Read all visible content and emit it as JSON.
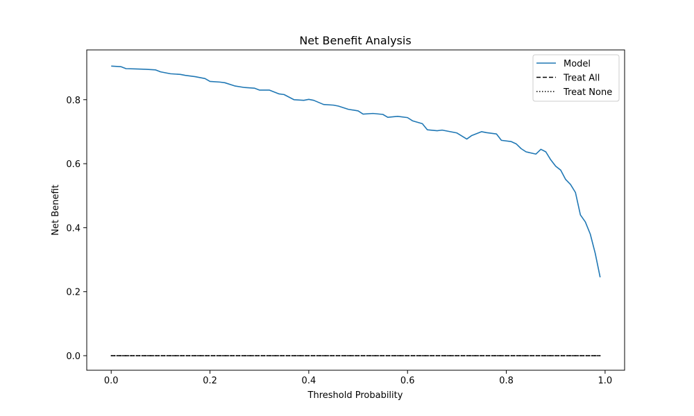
{
  "chart_data": {
    "type": "line",
    "title": "Net Benefit Analysis",
    "xlabel": "Threshold Probability",
    "ylabel": "Net Benefit",
    "xlim": [
      -0.0495,
      1.0395
    ],
    "ylim": [
      -0.0455,
      0.9555
    ],
    "xticks": [
      0.0,
      0.2,
      0.4,
      0.6,
      0.8,
      1.0
    ],
    "xtick_labels": [
      "0.0",
      "0.2",
      "0.4",
      "0.6",
      "0.8",
      "1.0"
    ],
    "yticks": [
      0.0,
      0.2,
      0.4,
      0.6,
      0.8
    ],
    "ytick_labels": [
      "0.0",
      "0.2",
      "0.4",
      "0.6",
      "0.8"
    ],
    "grid": false,
    "legend_position": "top-right",
    "series": [
      {
        "name": "Model",
        "color": "#1f77b4",
        "style": "solid",
        "x": [
          0.0,
          0.02,
          0.03,
          0.05,
          0.07,
          0.09,
          0.1,
          0.12,
          0.14,
          0.15,
          0.17,
          0.19,
          0.2,
          0.22,
          0.23,
          0.25,
          0.27,
          0.29,
          0.3,
          0.32,
          0.34,
          0.35,
          0.37,
          0.39,
          0.4,
          0.41,
          0.43,
          0.45,
          0.46,
          0.48,
          0.5,
          0.51,
          0.53,
          0.55,
          0.56,
          0.58,
          0.6,
          0.61,
          0.63,
          0.64,
          0.66,
          0.67,
          0.69,
          0.7,
          0.72,
          0.73,
          0.75,
          0.76,
          0.78,
          0.79,
          0.81,
          0.82,
          0.83,
          0.84,
          0.86,
          0.87,
          0.88,
          0.89,
          0.9,
          0.91,
          0.92,
          0.93,
          0.94,
          0.95,
          0.96,
          0.97,
          0.98,
          0.99
        ],
        "y": [
          0.905,
          0.903,
          0.897,
          0.896,
          0.895,
          0.893,
          0.887,
          0.881,
          0.879,
          0.876,
          0.872,
          0.866,
          0.857,
          0.855,
          0.853,
          0.843,
          0.838,
          0.836,
          0.83,
          0.83,
          0.818,
          0.816,
          0.8,
          0.798,
          0.801,
          0.798,
          0.785,
          0.783,
          0.78,
          0.77,
          0.765,
          0.755,
          0.757,
          0.754,
          0.745,
          0.748,
          0.744,
          0.734,
          0.725,
          0.706,
          0.703,
          0.705,
          0.699,
          0.696,
          0.677,
          0.688,
          0.7,
          0.697,
          0.693,
          0.673,
          0.669,
          0.662,
          0.647,
          0.637,
          0.63,
          0.645,
          0.637,
          0.612,
          0.592,
          0.58,
          0.551,
          0.535,
          0.51,
          0.44,
          0.418,
          0.38,
          0.32,
          0.245
        ]
      },
      {
        "name": "Treat All",
        "color": "#000000",
        "style": "dashed",
        "x": [
          0.0,
          0.99
        ],
        "y": [
          0.0,
          0.0
        ]
      },
      {
        "name": "Treat None",
        "color": "#000000",
        "style": "dotted",
        "x": [
          0.0,
          0.99
        ],
        "y": [
          0.0,
          0.0
        ]
      }
    ]
  }
}
